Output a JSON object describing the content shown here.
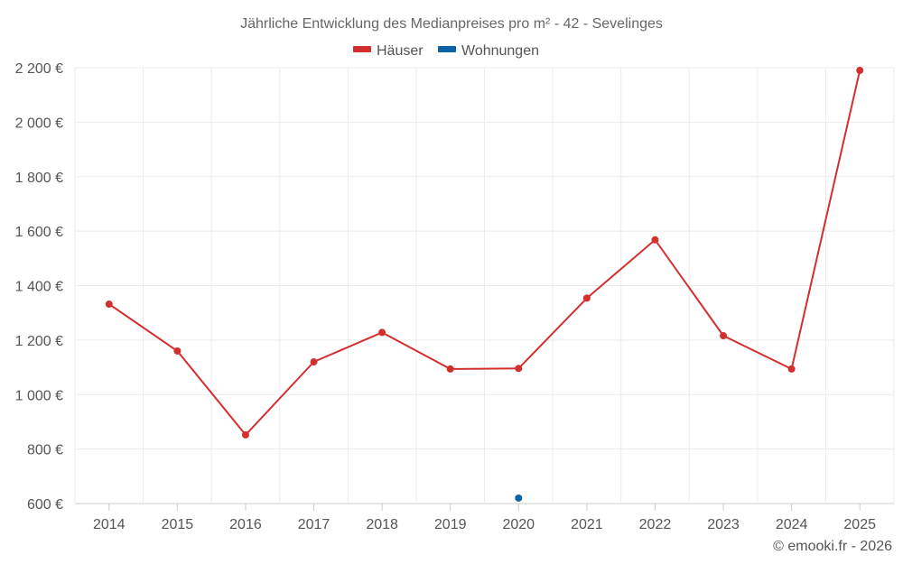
{
  "chart_data": {
    "type": "line",
    "title": "Jährliche Entwicklung des Medianpreises pro m² - 42 - Sevelinges",
    "categories": [
      "2014",
      "2015",
      "2016",
      "2017",
      "2018",
      "2019",
      "2020",
      "2021",
      "2022",
      "2023",
      "2024",
      "2025"
    ],
    "series": [
      {
        "name": "Häuser",
        "color": "#d32f2f",
        "values": [
          1332,
          1160,
          852,
          1120,
          1228,
          1094,
          1096,
          1354,
          1568,
          1216,
          1094,
          2190
        ]
      },
      {
        "name": "Wohnungen",
        "color": "#0b63a5",
        "values": [
          null,
          null,
          null,
          null,
          null,
          null,
          620,
          null,
          null,
          null,
          null,
          null
        ]
      }
    ],
    "ylim": [
      600,
      2200
    ],
    "yticks": [
      600,
      800,
      1000,
      1200,
      1400,
      1600,
      1800,
      2000,
      2200
    ],
    "ytick_labels": [
      "600 €",
      "800 €",
      "1 000 €",
      "1 200 €",
      "1 400 €",
      "1 600 €",
      "1 800 €",
      "2 000 €",
      "2 200 €"
    ],
    "legend_position": "top-center",
    "grid": true
  },
  "credit": "© emooki.fr - 2026"
}
